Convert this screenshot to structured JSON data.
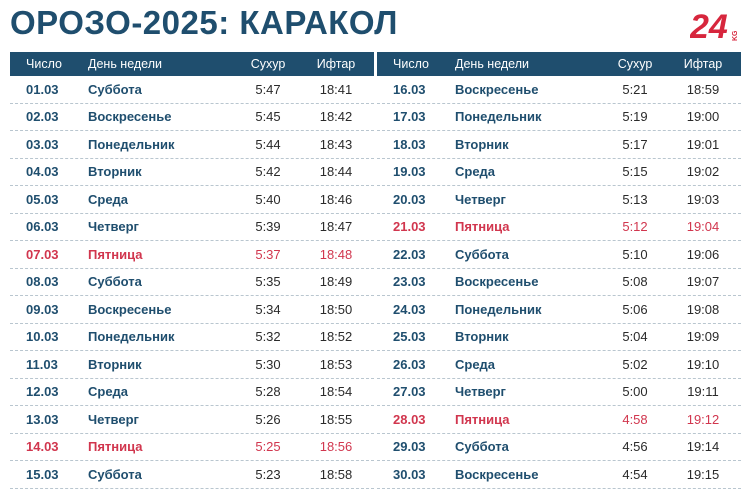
{
  "title": "ОРОЗО-2025: КАРАКОЛ",
  "logo": {
    "main": "24",
    "sub": "KG"
  },
  "headers": {
    "date": "Число",
    "day": "День недели",
    "suhur": "Сухур",
    "iftar": "Ифтар"
  },
  "left_rows": [
    {
      "date": "01.03",
      "day": "Суббота",
      "suhur": "5:47",
      "iftar": "18:41",
      "friday": false
    },
    {
      "date": "02.03",
      "day": "Воскресенье",
      "suhur": "5:45",
      "iftar": "18:42",
      "friday": false
    },
    {
      "date": "03.03",
      "day": "Понедельник",
      "suhur": "5:44",
      "iftar": "18:43",
      "friday": false
    },
    {
      "date": "04.03",
      "day": "Вторник",
      "suhur": "5:42",
      "iftar": "18:44",
      "friday": false
    },
    {
      "date": "05.03",
      "day": "Среда",
      "suhur": "5:40",
      "iftar": "18:46",
      "friday": false
    },
    {
      "date": "06.03",
      "day": "Четверг",
      "suhur": "5:39",
      "iftar": "18:47",
      "friday": false
    },
    {
      "date": "07.03",
      "day": "Пятница",
      "suhur": "5:37",
      "iftar": "18:48",
      "friday": true
    },
    {
      "date": "08.03",
      "day": "Суббота",
      "suhur": "5:35",
      "iftar": "18:49",
      "friday": false
    },
    {
      "date": "09.03",
      "day": "Воскресенье",
      "suhur": "5:34",
      "iftar": "18:50",
      "friday": false
    },
    {
      "date": "10.03",
      "day": "Понедельник",
      "suhur": "5:32",
      "iftar": "18:52",
      "friday": false
    },
    {
      "date": "11.03",
      "day": "Вторник",
      "suhur": "5:30",
      "iftar": "18:53",
      "friday": false
    },
    {
      "date": "12.03",
      "day": "Среда",
      "suhur": "5:28",
      "iftar": "18:54",
      "friday": false
    },
    {
      "date": "13.03",
      "day": "Четверг",
      "suhur": "5:26",
      "iftar": "18:55",
      "friday": false
    },
    {
      "date": "14.03",
      "day": "Пятница",
      "suhur": "5:25",
      "iftar": "18:56",
      "friday": true
    },
    {
      "date": "15.03",
      "day": "Суббота",
      "suhur": "5:23",
      "iftar": "18:58",
      "friday": false
    }
  ],
  "right_rows": [
    {
      "date": "16.03",
      "day": "Воскресенье",
      "suhur": "5:21",
      "iftar": "18:59",
      "friday": false
    },
    {
      "date": "17.03",
      "day": "Понедельник",
      "suhur": "5:19",
      "iftar": "19:00",
      "friday": false
    },
    {
      "date": "18.03",
      "day": "Вторник",
      "suhur": "5:17",
      "iftar": "19:01",
      "friday": false
    },
    {
      "date": "19.03",
      "day": "Среда",
      "suhur": "5:15",
      "iftar": "19:02",
      "friday": false
    },
    {
      "date": "20.03",
      "day": "Четверг",
      "suhur": "5:13",
      "iftar": "19:03",
      "friday": false
    },
    {
      "date": "21.03",
      "day": "Пятница",
      "suhur": "5:12",
      "iftar": "19:04",
      "friday": true
    },
    {
      "date": "22.03",
      "day": "Суббота",
      "suhur": "5:10",
      "iftar": "19:06",
      "friday": false
    },
    {
      "date": "23.03",
      "day": "Воскресенье",
      "suhur": "5:08",
      "iftar": "19:07",
      "friday": false
    },
    {
      "date": "24.03",
      "day": "Понедельник",
      "suhur": "5:06",
      "iftar": "19:08",
      "friday": false
    },
    {
      "date": "25.03",
      "day": "Вторник",
      "suhur": "5:04",
      "iftar": "19:09",
      "friday": false
    },
    {
      "date": "26.03",
      "day": "Среда",
      "suhur": "5:02",
      "iftar": "19:10",
      "friday": false
    },
    {
      "date": "27.03",
      "day": "Четверг",
      "suhur": "5:00",
      "iftar": "19:11",
      "friday": false
    },
    {
      "date": "28.03",
      "day": "Пятница",
      "suhur": "4:58",
      "iftar": "19:12",
      "friday": true
    },
    {
      "date": "29.03",
      "day": "Суббота",
      "suhur": "4:56",
      "iftar": "19:14",
      "friday": false
    },
    {
      "date": "30.03",
      "day": "Воскресенье",
      "suhur": "4:54",
      "iftar": "19:15",
      "friday": false
    }
  ],
  "colors": {
    "primary": "#1f4e6e",
    "friday": "#d1364e",
    "logo": "#d7263d"
  }
}
